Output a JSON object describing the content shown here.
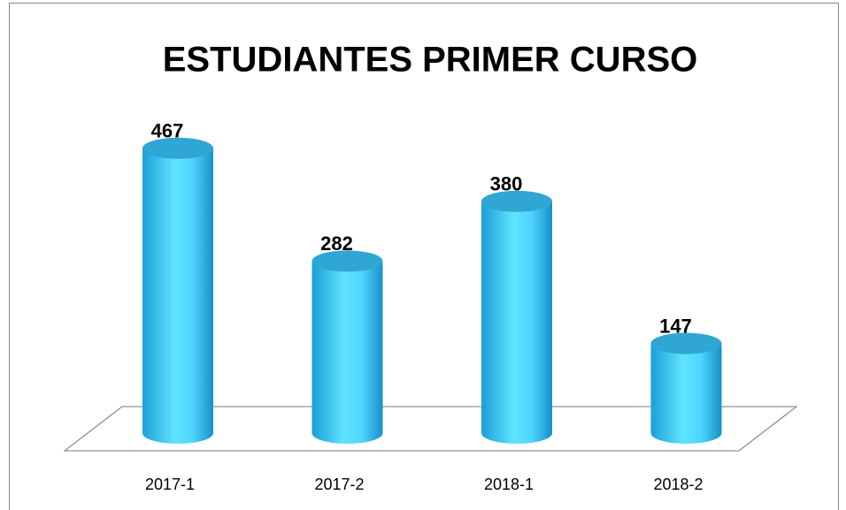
{
  "chart_data": {
    "type": "bar",
    "title": "ESTUDIANTES PRIMER CURSO",
    "categories": [
      "2017-1",
      "2017-2",
      "2018-1",
      "2018-2"
    ],
    "values": [
      467,
      282,
      380,
      147
    ],
    "color": "#4fd6ff"
  }
}
